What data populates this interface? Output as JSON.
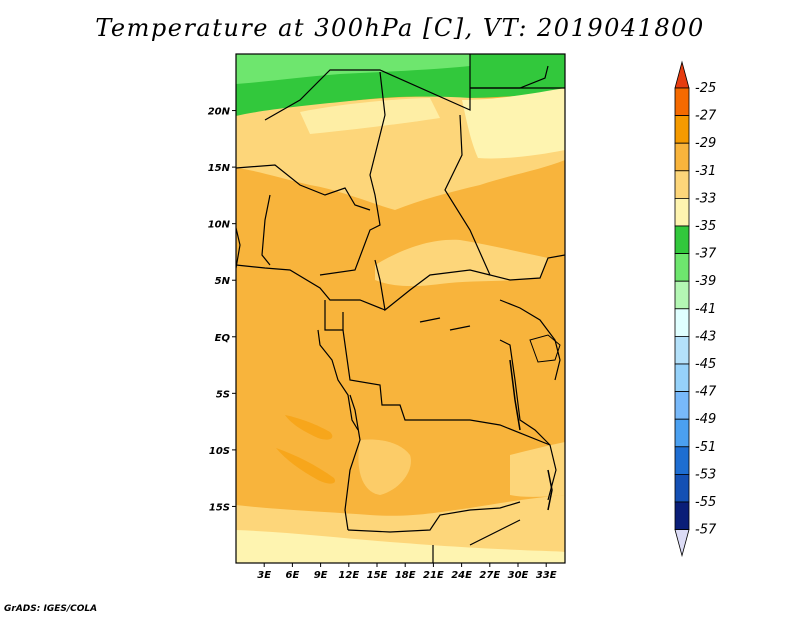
{
  "title": "Temperature at 300hPa [C], VT: 2019041800",
  "credit": "GrADS: IGES/COLA",
  "map": {
    "lat_labels": [
      "20N",
      "15N",
      "10N",
      "5N",
      "EQ",
      "5S",
      "10S",
      "15S"
    ],
    "lat_values": [
      20,
      15,
      10,
      5,
      0,
      -5,
      -10,
      -15
    ],
    "lon_labels": [
      "3E",
      "6E",
      "9E",
      "12E",
      "15E",
      "18E",
      "21E",
      "24E",
      "27E",
      "30E",
      "33E"
    ],
    "lon_values": [
      3,
      6,
      9,
      12,
      15,
      18,
      21,
      24,
      27,
      30,
      33
    ],
    "lon_range": [
      0,
      35
    ],
    "lat_range": [
      -20,
      25
    ]
  },
  "colorbar": {
    "labels": [
      "-25",
      "-27",
      "-29",
      "-31",
      "-33",
      "-35",
      "-37",
      "-39",
      "-41",
      "-43",
      "-45",
      "-47",
      "-49",
      "-51",
      "-53",
      "-55",
      "-57"
    ],
    "colors": [
      "#e63c10",
      "#f56a00",
      "#f59a00",
      "#f8b43c",
      "#fdd67a",
      "#fef4b0",
      "#32c83c",
      "#6ee66e",
      "#b4f7b4",
      "#e0ffff",
      "#b4e1fa",
      "#96d2fa",
      "#78b9fa",
      "#4ba0f0",
      "#1e6ed2",
      "#1450b4",
      "#0a1e78",
      "#dcdcf6"
    ]
  }
}
